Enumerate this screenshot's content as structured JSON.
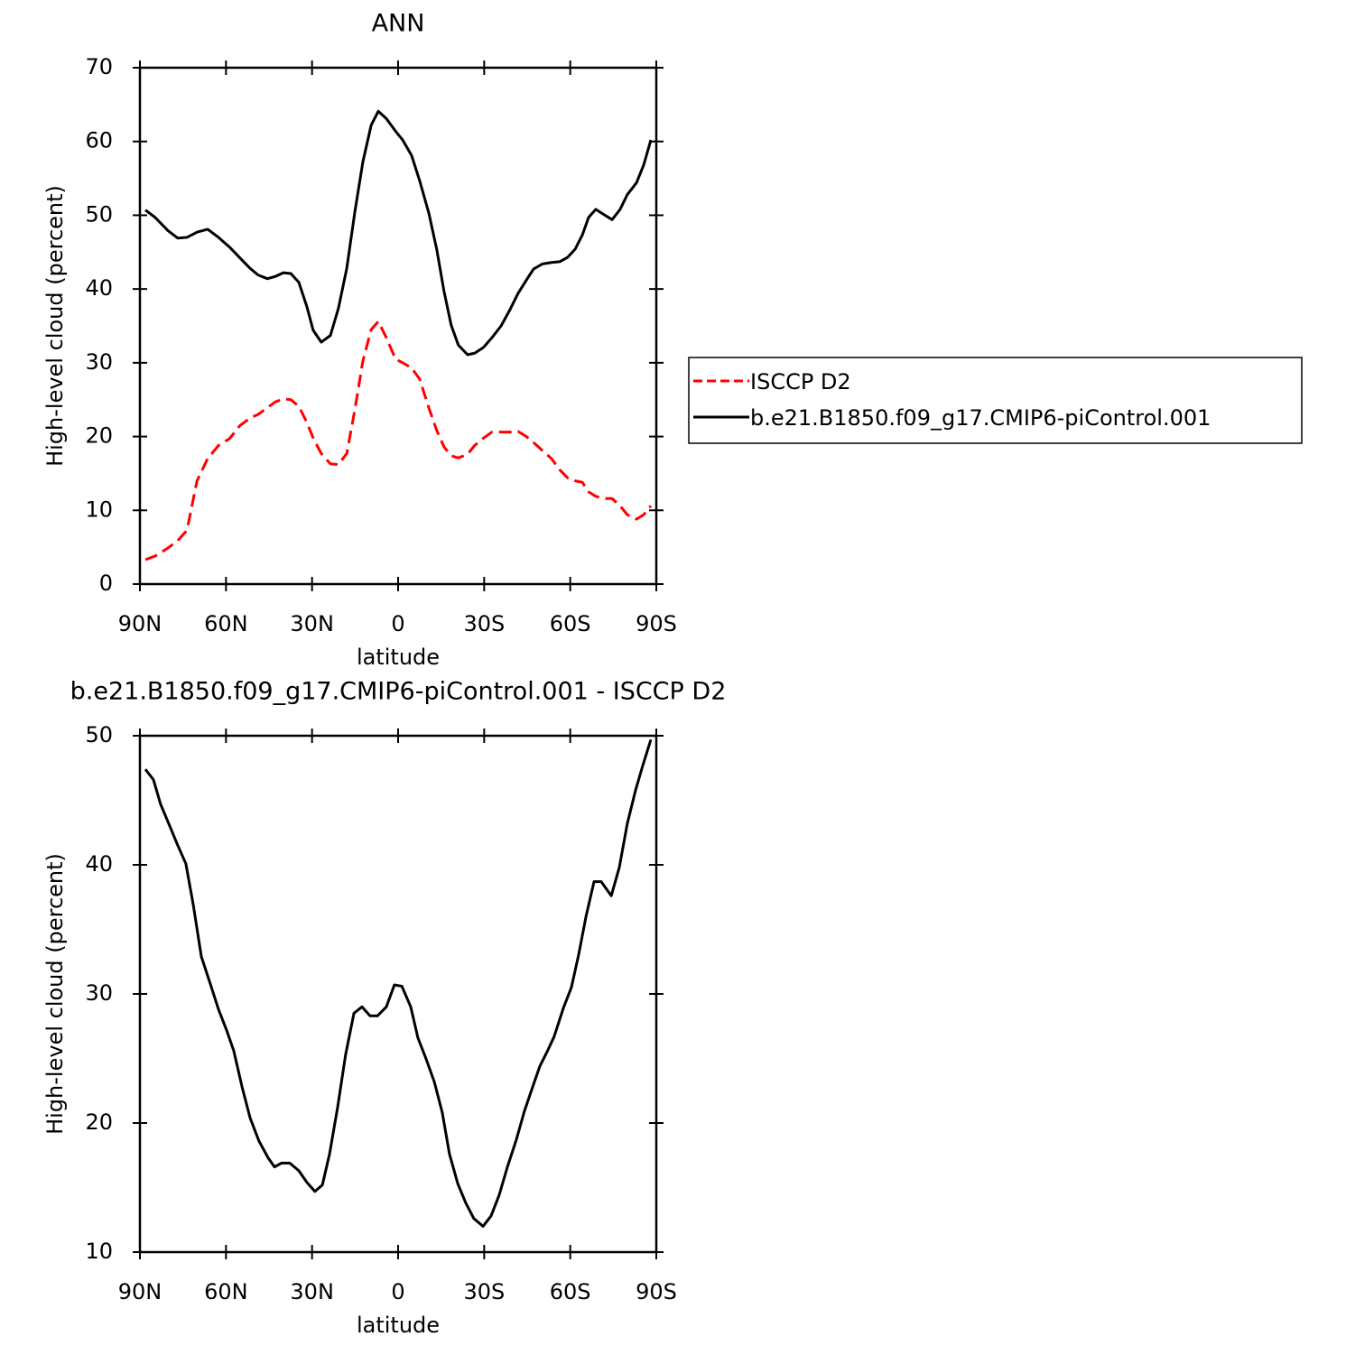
{
  "chart_data": [
    {
      "type": "line",
      "title": "ANN",
      "xlabel": "latitude",
      "ylabel": "High-level cloud (percent)",
      "x": [
        88.1,
        84.7,
        80.2,
        76.8,
        73.6,
        70.1,
        66.4,
        62.6,
        58.8,
        55.1,
        51.6,
        48.8,
        45.6,
        42.8,
        40.0,
        37.4,
        34.6,
        31.8,
        29.6,
        26.8,
        23.6,
        20.8,
        17.9,
        15.1,
        12.3,
        9.4,
        6.9,
        4.1,
        0.9,
        -1.6,
        -4.7,
        -7.5,
        -10.7,
        -13.5,
        -16.0,
        -18.5,
        -21.0,
        -24.2,
        -26.7,
        -29.8,
        -32.7,
        -35.9,
        -39.0,
        -41.8,
        -44.7,
        -47.2,
        -50.3,
        -53.5,
        -56.3,
        -59.1,
        -61.7,
        -64.2,
        -66.4,
        -68.9,
        -71.7,
        -74.6,
        -77.4,
        -79.9,
        -83.1,
        -85.6,
        -88.1
      ],
      "series": [
        {
          "name": "ISCCP D2",
          "color": "#ff0000",
          "line_style": "dashed",
          "values": [
            3.3,
            3.8,
            4.9,
            5.9,
            7.3,
            14.0,
            17.0,
            18.8,
            19.7,
            21.5,
            22.5,
            23.0,
            23.9,
            24.7,
            25.1,
            25.0,
            24.1,
            21.9,
            19.8,
            17.7,
            16.3,
            16.2,
            17.7,
            23.6,
            30.2,
            34.5,
            35.6,
            33.4,
            30.5,
            30.0,
            29.3,
            27.8,
            23.9,
            20.8,
            18.6,
            17.4,
            17.1,
            17.6,
            18.8,
            19.8,
            20.6,
            20.6,
            20.6,
            20.7,
            20.0,
            19.2,
            18.1,
            17.0,
            15.5,
            14.4,
            14.0,
            13.8,
            12.5,
            11.9,
            11.6,
            11.6,
            10.6,
            9.4,
            8.8,
            9.4,
            10.6
          ]
        },
        {
          "name": "b.e21.B1850.f09_g17.CMIP6-piControl.001",
          "color": "#000000",
          "line_style": "solid",
          "values": [
            50.7,
            49.7,
            47.9,
            46.9,
            47.0,
            47.7,
            48.1,
            47.0,
            45.7,
            44.2,
            42.8,
            41.9,
            41.4,
            41.7,
            42.2,
            42.1,
            40.9,
            37.6,
            34.4,
            32.8,
            33.7,
            37.4,
            42.8,
            50.4,
            57.2,
            62.2,
            64.1,
            63.1,
            61.4,
            60.2,
            58.1,
            54.7,
            50.3,
            45.3,
            39.7,
            35.1,
            32.4,
            31.1,
            31.3,
            32.1,
            33.4,
            35.0,
            37.2,
            39.4,
            41.2,
            42.7,
            43.4,
            43.6,
            43.7,
            44.3,
            45.4,
            47.3,
            49.7,
            50.8,
            50.1,
            49.4,
            50.8,
            52.8,
            54.4,
            56.8,
            60.2
          ]
        }
      ],
      "xlim": [
        90,
        -90
      ],
      "xticks": [
        {
          "value": 90,
          "label": "90N"
        },
        {
          "value": 60,
          "label": "60N"
        },
        {
          "value": 30,
          "label": "30N"
        },
        0,
        {
          "value": -30,
          "label": "30S"
        },
        {
          "value": -60,
          "label": "60S"
        },
        {
          "value": -90,
          "label": "90S"
        }
      ],
      "ylim": [
        0,
        70
      ],
      "yticks": [
        0,
        10,
        20,
        30,
        40,
        50,
        60,
        70
      ],
      "legend": "right"
    },
    {
      "type": "line",
      "title": "b.e21.B1850.f09_g17.CMIP6-piControl.001 - ISCCP D2",
      "xlabel": "latitude",
      "ylabel": "High-level cloud (percent)",
      "x": [
        88.1,
        85.3,
        82.8,
        79.6,
        76.8,
        74.0,
        71.4,
        68.6,
        65.5,
        62.6,
        59.8,
        57.3,
        54.4,
        51.6,
        48.5,
        45.3,
        43.1,
        40.6,
        37.8,
        34.6,
        31.8,
        29.0,
        26.4,
        23.9,
        21.1,
        18.3,
        15.4,
        12.6,
        9.8,
        7.2,
        4.1,
        1.3,
        -1.3,
        -4.4,
        -6.9,
        -9.7,
        -12.6,
        -15.4,
        -17.9,
        -20.8,
        -23.6,
        -26.4,
        -29.6,
        -32.4,
        -35.2,
        -38.1,
        -41.2,
        -44.0,
        -46.9,
        -49.4,
        -51.9,
        -54.4,
        -57.6,
        -60.4,
        -62.9,
        -65.5,
        -68.3,
        -70.8,
        -74.3,
        -77.1,
        -79.9,
        -82.8,
        -85.3,
        -88.1
      ],
      "series": [
        {
          "color": "#000000",
          "line_style": "solid",
          "values": [
            47.4,
            46.6,
            44.7,
            43.0,
            41.5,
            40.1,
            36.9,
            32.9,
            30.8,
            28.8,
            27.2,
            25.6,
            22.8,
            20.4,
            18.6,
            17.3,
            16.6,
            16.9,
            16.9,
            16.3,
            15.4,
            14.7,
            15.2,
            17.6,
            21.2,
            25.3,
            28.5,
            29.0,
            28.3,
            28.3,
            29.0,
            30.7,
            30.6,
            29.0,
            26.6,
            25.0,
            23.2,
            20.8,
            17.6,
            15.3,
            13.8,
            12.6,
            12.0,
            12.8,
            14.4,
            16.6,
            18.7,
            20.9,
            22.8,
            24.4,
            25.5,
            26.7,
            28.9,
            30.5,
            33.0,
            36.0,
            38.7,
            38.7,
            37.6,
            39.8,
            43.2,
            45.8,
            47.7,
            49.7
          ]
        }
      ],
      "xlim": [
        90,
        -90
      ],
      "xticks": [
        {
          "value": 90,
          "label": "90N"
        },
        {
          "value": 60,
          "label": "60N"
        },
        {
          "value": 30,
          "label": "30N"
        },
        0,
        {
          "value": -30,
          "label": "30S"
        },
        {
          "value": -60,
          "label": "60S"
        },
        {
          "value": -90,
          "label": "90S"
        }
      ],
      "ylim": [
        10,
        50
      ],
      "yticks": [
        10,
        20,
        30,
        40,
        50
      ]
    }
  ]
}
